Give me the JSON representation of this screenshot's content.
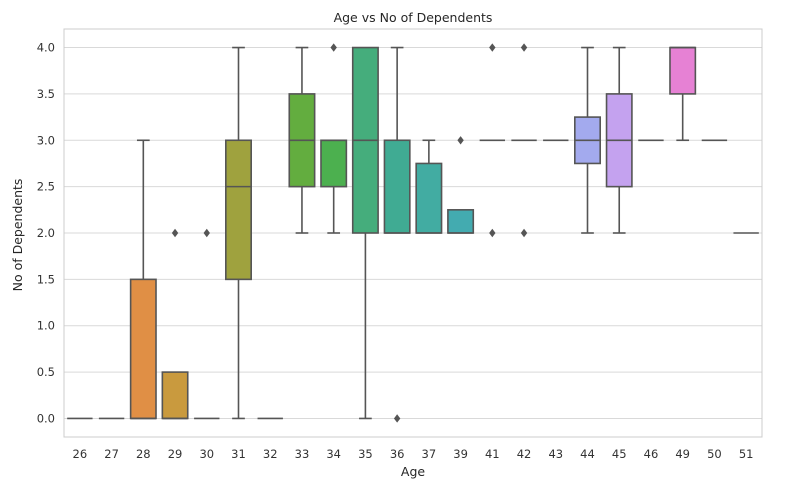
{
  "chart_data": {
    "type": "box",
    "title": "Age vs No of Dependents",
    "xlabel": "Age",
    "ylabel": "No of Dependents",
    "ylim": [
      -0.2,
      4.2
    ],
    "yticks": [
      0.0,
      0.5,
      1.0,
      1.5,
      2.0,
      2.5,
      3.0,
      3.5,
      4.0
    ],
    "ytick_labels": [
      "0.0",
      "0.5",
      "1.0",
      "1.5",
      "2.0",
      "2.5",
      "3.0",
      "3.5",
      "4.0"
    ],
    "grid": "horizontal",
    "legend": "none",
    "categories": [
      "26",
      "27",
      "28",
      "29",
      "30",
      "31",
      "32",
      "33",
      "34",
      "35",
      "36",
      "37",
      "39",
      "41",
      "42",
      "43",
      "44",
      "45",
      "46",
      "49",
      "50",
      "51"
    ],
    "boxes": [
      {
        "category": "26",
        "whislo": 0,
        "q1": 0,
        "med": 0,
        "q3": 0,
        "whishi": 0,
        "fliers": [],
        "color": "#dd7e86"
      },
      {
        "category": "27",
        "whislo": 0,
        "q1": 0,
        "med": 0,
        "q3": 0,
        "whishi": 0,
        "fliers": [],
        "color": "#de7f6f"
      },
      {
        "category": "28",
        "whislo": 0,
        "q1": 0,
        "med": 0,
        "q3": 1.5,
        "whishi": 3.0,
        "fliers": [],
        "color": "#e08f45"
      },
      {
        "category": "29",
        "whislo": 0,
        "q1": 0,
        "med": 0,
        "q3": 0.5,
        "whishi": 0.5,
        "fliers": [
          2.0
        ],
        "color": "#c99a3e"
      },
      {
        "category": "30",
        "whislo": 0,
        "q1": 0,
        "med": 0,
        "q3": 0,
        "whishi": 0,
        "fliers": [
          2.0
        ],
        "color": "#b3a33d"
      },
      {
        "category": "31",
        "whislo": 0,
        "q1": 1.5,
        "med": 2.5,
        "q3": 3.0,
        "whishi": 4.0,
        "fliers": [],
        "color": "#9fa23e"
      },
      {
        "category": "32",
        "whislo": 0,
        "q1": 0,
        "med": 0,
        "q3": 0,
        "whishi": 0,
        "fliers": [],
        "color": "#86a83e"
      },
      {
        "category": "33",
        "whislo": 2.0,
        "q1": 2.5,
        "med": 3.0,
        "q3": 3.5,
        "whishi": 4.0,
        "fliers": [],
        "color": "#63ad3f"
      },
      {
        "category": "34",
        "whislo": 2.0,
        "q1": 2.5,
        "med": 3.0,
        "q3": 3.0,
        "whishi": 3.0,
        "fliers": [
          4.0
        ],
        "color": "#4cb04f"
      },
      {
        "category": "35",
        "whislo": 0,
        "q1": 2.0,
        "med": 3.0,
        "q3": 4.0,
        "whishi": 4.0,
        "fliers": [],
        "color": "#45ad7c"
      },
      {
        "category": "36",
        "whislo": 2.0,
        "q1": 2.0,
        "med": 2.0,
        "q3": 3.0,
        "whishi": 4.0,
        "fliers": [
          0.0
        ],
        "color": "#40ab93"
      },
      {
        "category": "37",
        "whislo": 2.0,
        "q1": 2.0,
        "med": 2.0,
        "q3": 2.75,
        "whishi": 3.0,
        "fliers": [],
        "color": "#42aca2"
      },
      {
        "category": "39",
        "whislo": 2.0,
        "q1": 2.0,
        "med": 2.0,
        "q3": 2.25,
        "whishi": 2.25,
        "fliers": [
          3.0
        ],
        "color": "#43abb0"
      },
      {
        "category": "41",
        "whislo": 3.0,
        "q1": 3.0,
        "med": 3.0,
        "q3": 3.0,
        "whishi": 3.0,
        "fliers": [
          4.0,
          2.0
        ],
        "color": "#45abbf"
      },
      {
        "category": "42",
        "whislo": 3.0,
        "q1": 3.0,
        "med": 3.0,
        "q3": 3.0,
        "whishi": 3.0,
        "fliers": [
          4.0,
          2.0
        ],
        "color": "#4aa9cf"
      },
      {
        "category": "43",
        "whislo": 3.0,
        "q1": 3.0,
        "med": 3.0,
        "q3": 3.0,
        "whishi": 3.0,
        "fliers": [],
        "color": "#62a3de"
      },
      {
        "category": "44",
        "whislo": 2.0,
        "q1": 2.75,
        "med": 3.0,
        "q3": 3.25,
        "whishi": 4.0,
        "fliers": [],
        "color": "#a3aaee"
      },
      {
        "category": "45",
        "whislo": 2.0,
        "q1": 2.5,
        "med": 3.0,
        "q3": 3.5,
        "whishi": 4.0,
        "fliers": [],
        "color": "#c4a2ef"
      },
      {
        "category": "46",
        "whislo": 3.0,
        "q1": 3.0,
        "med": 3.0,
        "q3": 3.0,
        "whishi": 3.0,
        "fliers": [],
        "color": "#d98ee6"
      },
      {
        "category": "49",
        "whislo": 3.0,
        "q1": 3.5,
        "med": 4.0,
        "q3": 4.0,
        "whishi": 4.0,
        "fliers": [],
        "color": "#e681d4"
      },
      {
        "category": "50",
        "whislo": 3.0,
        "q1": 3.0,
        "med": 3.0,
        "q3": 3.0,
        "whishi": 3.0,
        "fliers": [],
        "color": "#e67fb5"
      },
      {
        "category": "51",
        "whislo": 2.0,
        "q1": 2.0,
        "med": 2.0,
        "q3": 2.0,
        "whishi": 2.0,
        "fliers": [],
        "color": "#e6809c"
      }
    ]
  },
  "colors": {
    "line": "#555555",
    "grid": "#d9d9d9",
    "frame": "#cccccc",
    "background": "#ffffff"
  }
}
